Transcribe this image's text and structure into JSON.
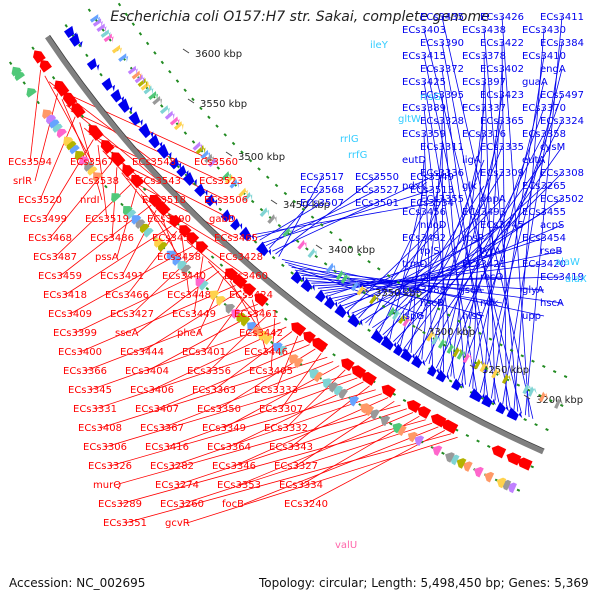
{
  "title": "Escherichia coli O157:H7 str. Sakai, complete genome",
  "footer": {
    "accession_text": "Accession: NC_002695",
    "summary_text": "Topology: circular; Length: 5,498,450 bp; Genes: 5,369"
  },
  "colors": {
    "forward": "#ff0000",
    "reverse": "#0000ee",
    "rna": "#33ccff",
    "pseudo": "#ff66aa",
    "backbone": "#808080",
    "tick": "#228b22"
  },
  "ticks": [
    "3600 kbp",
    "3550 kbp",
    "3500 kbp",
    "3450 kbp",
    "3400 kbp",
    "3350 kbp",
    "3300 kbp",
    "3250 kbp",
    "3200 kbp"
  ],
  "labels_reverse": [
    "ECs3435",
    "ECs3426",
    "ECs3411",
    "ECs3403",
    "ECs3438",
    "ECs3430",
    "ECs3390",
    "ECs3422",
    "ECs3384",
    "ECs3415",
    "ECs3378",
    "ECs3410",
    "ECs3372",
    "ECs3402",
    "engA",
    "ECs3425",
    "ECs3397",
    "guaA",
    "ECs3395",
    "ECs3423",
    "ECs5497",
    "ECs3389",
    "ECs3337",
    "ECs3370",
    "ECs3328",
    "ECs3365",
    "ECs3324",
    "ECs3359",
    "ECs3316",
    "ECs3358",
    "ECs3311",
    "ECs3335",
    "cysM",
    "eutD",
    "ligA",
    "eutA",
    "ECs3336",
    "ECs3309",
    "ECs3308",
    "pdxK",
    "glk",
    "ECs3265",
    "ECs3355",
    "dapA",
    "ECs3502",
    "ECs3456",
    "ECs3493",
    "ECs3455",
    "nuoD",
    "ECs3445",
    "acpS",
    "ECs3492",
    "rpsP",
    "ECs3454",
    "rplS",
    "tyrA",
    "rseB",
    "trmD",
    "ECs3421",
    "ECs3420",
    "era",
    "recO",
    "ECs3419",
    "ECs3388",
    "jscA",
    "glyA",
    "hscB",
    "ndk",
    "hscA",
    "ispG",
    "hisS",
    "upp",
    "ECs3517",
    "ECs3550",
    "ECs3549",
    "ECs3568",
    "ECs3527",
    "ECs3513",
    "ECs3507",
    "ECs3501",
    "ECs3534"
  ],
  "labels_rna": [
    "ileY",
    "rrsG",
    "gltW",
    "rrlG",
    "rrfG",
    "alaW",
    "alaX"
  ],
  "labels_pseudo": [
    "valU"
  ],
  "labels_forward": [
    "ECs3594",
    "ECs3567",
    "ECs3548",
    "ECs3560",
    "srlR",
    "ECs3538",
    "ECs3543",
    "ECs3523",
    "ECs3520",
    "nrdI",
    "ECs3518",
    "ECs3506",
    "ECs3499",
    "ECs3519",
    "ECs3490",
    "gabD",
    "ECs3468",
    "ECs3486",
    "ECs3453",
    "ECs3465",
    "ECs3487",
    "pssA",
    "ECs3458",
    "ECs3428",
    "ECs3459",
    "ECs3491",
    "ECs3440",
    "ECs3460",
    "ECs3418",
    "ECs3466",
    "ECs3448",
    "ECs3424",
    "ECs3409",
    "ECs3427",
    "ECs3449",
    "ECs3461",
    "ECs3399",
    "sseA",
    "pheA",
    "ECs3442",
    "ECs3400",
    "ECs3444",
    "ECs3401",
    "ECs3446",
    "ECs3366",
    "ECs3404",
    "ECs3356",
    "ECs3405",
    "ECs3345",
    "ECs3406",
    "ECs3363",
    "ECs3333",
    "ECs3331",
    "ECs3407",
    "ECs3350",
    "ECs3307",
    "ECs3408",
    "ECs3367",
    "ECs3349",
    "ECs3332",
    "ECs3306",
    "ECs3416",
    "ECs3364",
    "ECs3343",
    "ECs3326",
    "ECs3282",
    "ECs3346",
    "ECs3327",
    "murQ",
    "ECs3274",
    "ECs3353",
    "ECs3334",
    "ECs3289",
    "ECs3260",
    "focB",
    "ECs3240",
    "ECs3351",
    "gcvR"
  ]
}
